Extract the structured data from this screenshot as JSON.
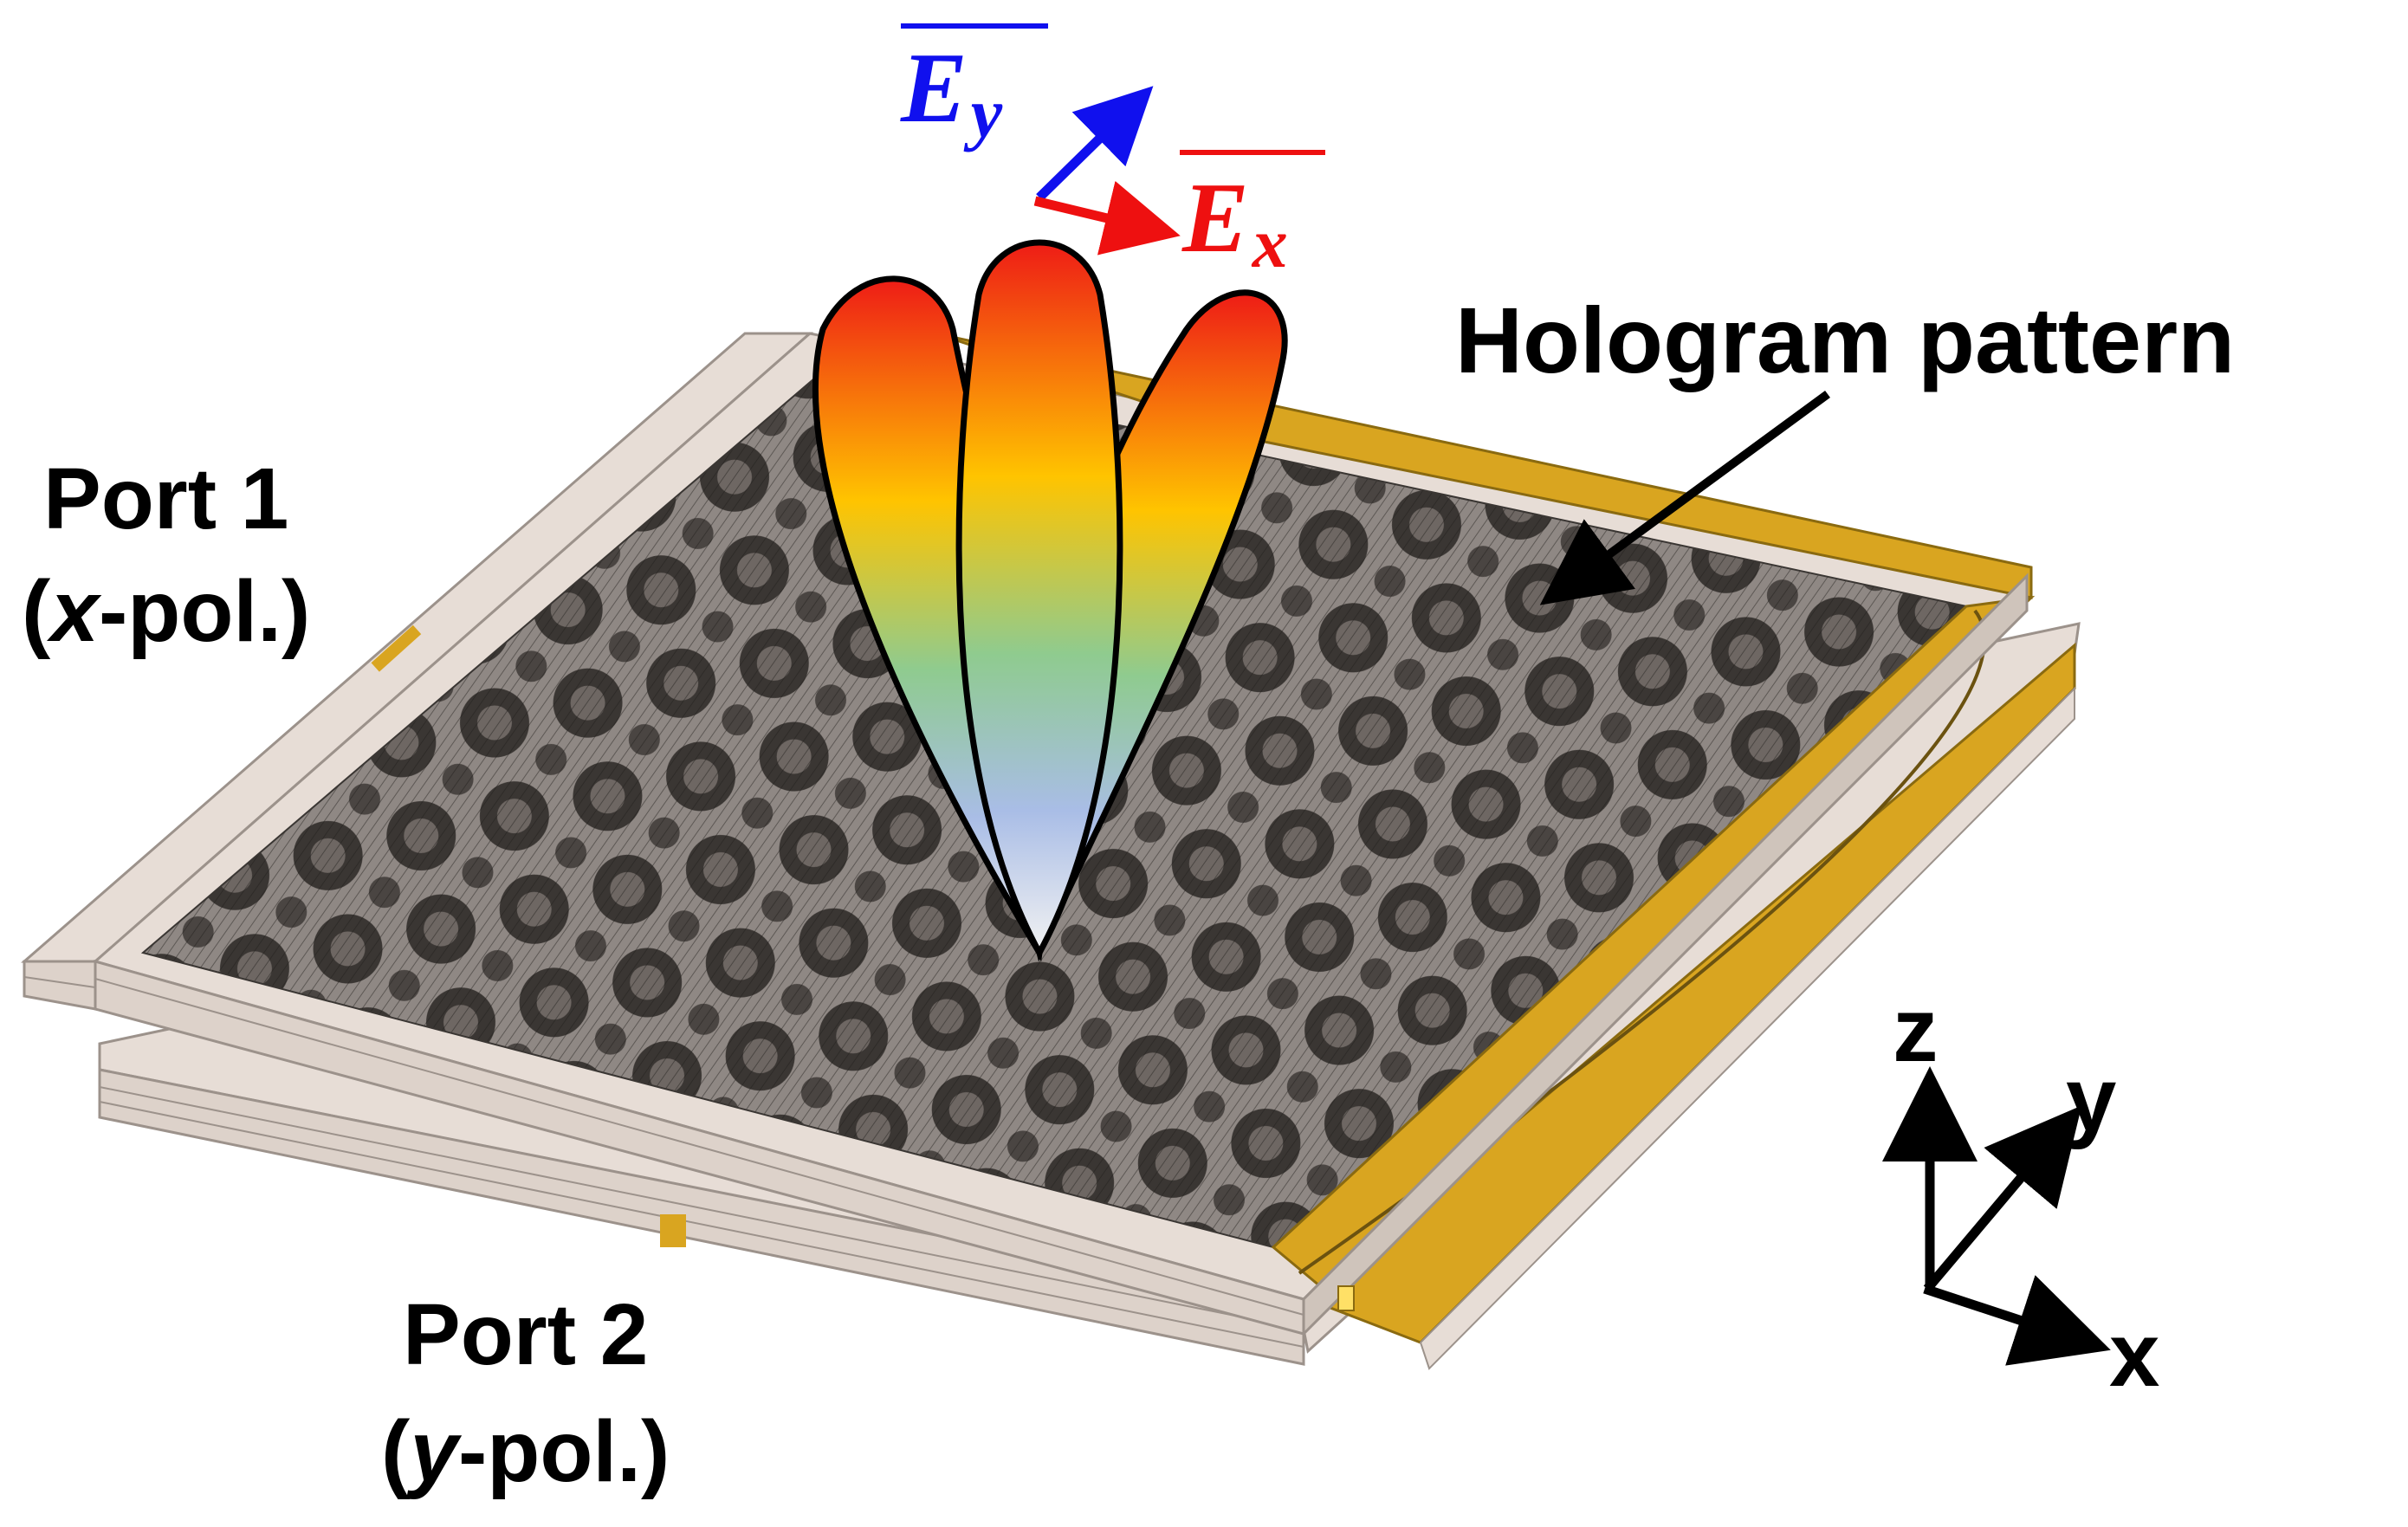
{
  "labels": {
    "hologram": "Hologram pattern",
    "port1_name": "Port 1",
    "port1_pol_var": "x",
    "port1_pol_rest": "-pol.)",
    "port2_name": "Port 2",
    "port2_pol_var": "y",
    "port2_pol_rest": "-pol.)",
    "open_paren": "("
  },
  "field_vectors": {
    "ey": {
      "letter": "E",
      "sub": "y",
      "color": "#1010ee"
    },
    "ex": {
      "letter": "E",
      "sub": "x",
      "color": "#ee1010"
    }
  },
  "axes": {
    "z": "z",
    "y": "y",
    "x": "x"
  },
  "colors": {
    "board": "#e7ddd6",
    "board_edge": "#9c928b",
    "gold": "#d9a520",
    "pattern_dark": "#3a3633",
    "beam_red": "#ee1c16",
    "beam_yellow": "#ffc400",
    "beam_green": "#8fcb8f",
    "beam_blue": "#a9bde6",
    "beam_white": "#f2f2f2"
  }
}
